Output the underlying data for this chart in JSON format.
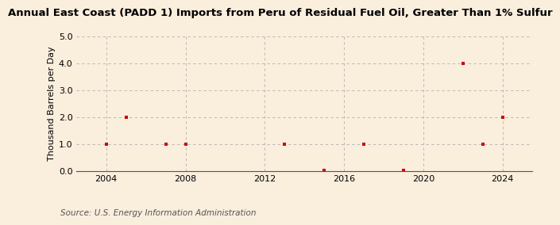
{
  "title": "Annual East Coast (PADD 1) Imports from Peru of Residual Fuel Oil, Greater Than 1% Sulfur",
  "ylabel": "Thousand Barrels per Day",
  "source": "Source: U.S. Energy Information Administration",
  "background_color": "#faeedd",
  "data_color": "#cc0000",
  "x_values": [
    2004,
    2005,
    2007,
    2008,
    2013,
    2015,
    2017,
    2019,
    2022,
    2023,
    2024
  ],
  "y_values": [
    1.0,
    2.0,
    1.0,
    1.0,
    1.0,
    0.03,
    1.0,
    0.03,
    4.0,
    1.0,
    2.0
  ],
  "xlim": [
    2002.5,
    2025.5
  ],
  "ylim": [
    0.0,
    5.0
  ],
  "xticks": [
    2004,
    2008,
    2012,
    2016,
    2020,
    2024
  ],
  "yticks": [
    0.0,
    1.0,
    2.0,
    3.0,
    4.0,
    5.0
  ],
  "grid_color": "#aaaaaa",
  "title_fontsize": 9.5,
  "label_fontsize": 8,
  "tick_fontsize": 8,
  "source_fontsize": 7.5
}
